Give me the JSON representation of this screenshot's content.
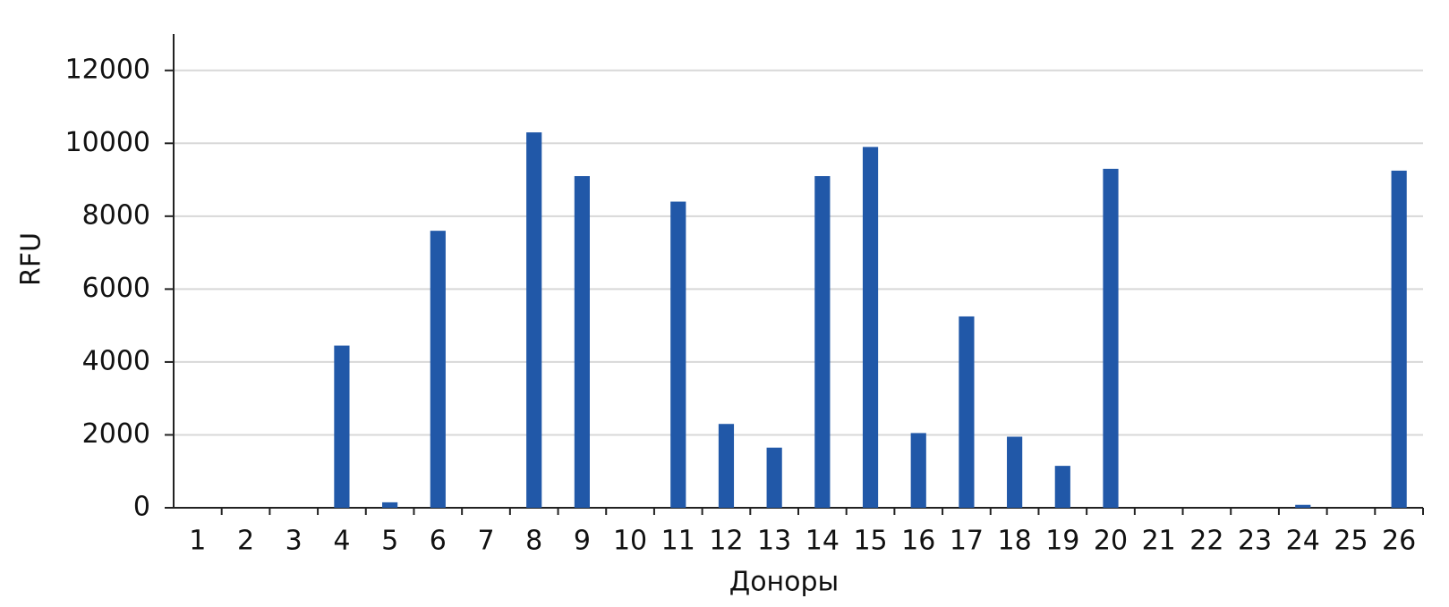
{
  "chart_data": {
    "type": "bar",
    "x_label": "Доноры",
    "y_label": "RFU",
    "categories": [
      "1",
      "2",
      "3",
      "4",
      "5",
      "6",
      "7",
      "8",
      "9",
      "10",
      "11",
      "12",
      "13",
      "14",
      "15",
      "16",
      "17",
      "18",
      "19",
      "20",
      "21",
      "22",
      "23",
      "24",
      "25",
      "26"
    ],
    "values": [
      0,
      0,
      0,
      4450,
      150,
      7600,
      0,
      10300,
      9100,
      0,
      8400,
      2300,
      1650,
      9100,
      9900,
      2050,
      5250,
      1950,
      1150,
      9300,
      0,
      0,
      0,
      80,
      0,
      9250
    ],
    "color": "#2158a8",
    "ylim": [
      0,
      13000
    ],
    "yticks": [
      0,
      2000,
      4000,
      6000,
      8000,
      10000,
      12000
    ],
    "grid": true
  }
}
